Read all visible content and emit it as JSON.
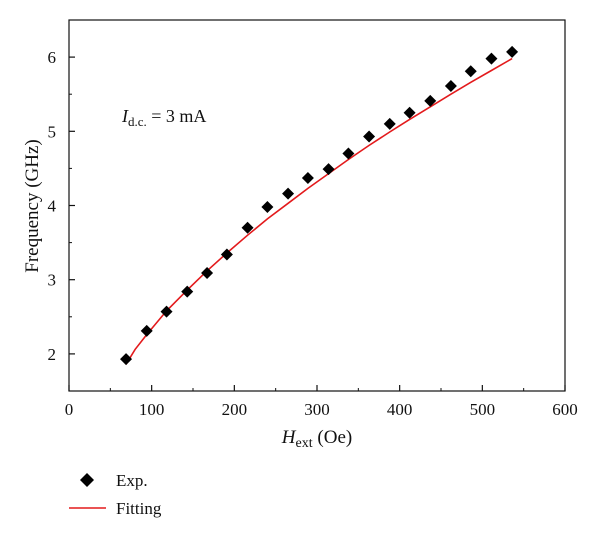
{
  "chart_data": {
    "type": "scatter",
    "title": "",
    "xlabel": {
      "main": "H",
      "sub": "ext",
      "unit": " (Oe)"
    },
    "ylabel": "Frequency (GHz)",
    "xlim": [
      0,
      600
    ],
    "ylim": [
      1.5,
      6.5
    ],
    "xticks": [
      0,
      100,
      200,
      300,
      400,
      500,
      600
    ],
    "yticks": [
      2,
      3,
      4,
      5,
      6
    ],
    "grid": false,
    "legend_position": "bottom-left, outside plot",
    "annotation": {
      "main": "I",
      "sub": "d.c.",
      "rest": " = 3 mA"
    },
    "series": [
      {
        "name": "Exp.",
        "kind": "scatter",
        "marker": "diamond",
        "color": "#000000",
        "x": [
          69,
          94,
          118,
          143,
          167,
          191,
          216,
          240,
          265,
          289,
          314,
          338,
          363,
          388,
          412,
          437,
          462,
          486,
          511,
          536
        ],
        "y": [
          1.93,
          2.31,
          2.57,
          2.84,
          3.09,
          3.34,
          3.7,
          3.98,
          4.16,
          4.37,
          4.49,
          4.7,
          4.93,
          5.1,
          5.25,
          5.41,
          5.61,
          5.81,
          5.98,
          6.07
        ]
      },
      {
        "name": "Fitting",
        "kind": "line",
        "color": "#e31a1c",
        "x": [
          69,
          80,
          94,
          118,
          143,
          167,
          191,
          216,
          240,
          265,
          289,
          314,
          338,
          363,
          388,
          412,
          437,
          462,
          486,
          511,
          536
        ],
        "y": [
          1.86,
          2.06,
          2.26,
          2.58,
          2.86,
          3.12,
          3.36,
          3.6,
          3.82,
          4.03,
          4.23,
          4.43,
          4.62,
          4.81,
          4.99,
          5.16,
          5.33,
          5.5,
          5.66,
          5.82,
          5.98
        ]
      }
    ]
  }
}
